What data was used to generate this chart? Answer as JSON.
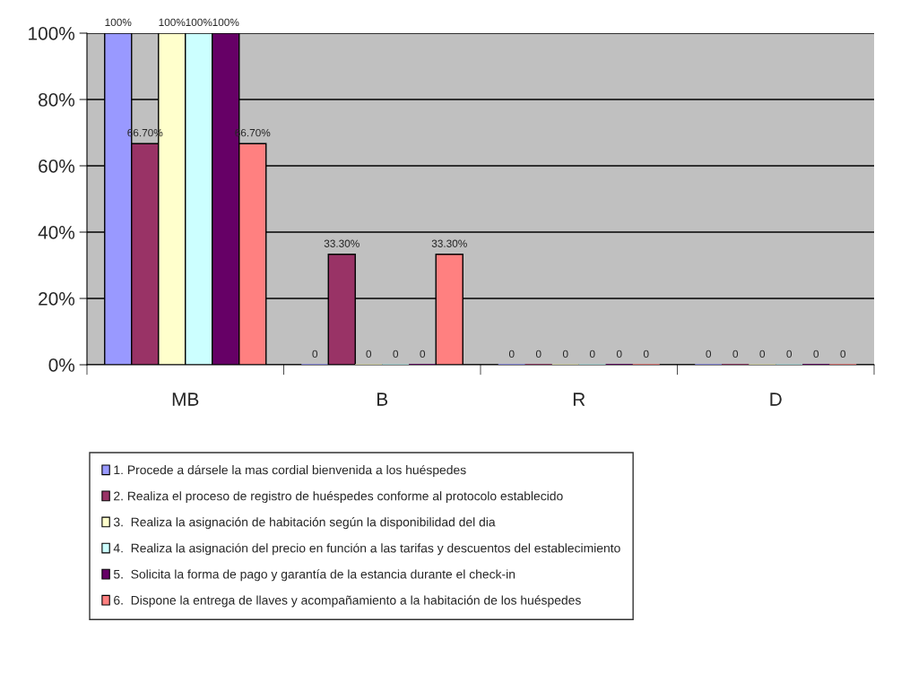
{
  "chart_data": {
    "type": "bar",
    "categories": [
      "MB",
      "B",
      "R",
      "D"
    ],
    "series": [
      {
        "name": "1. Procede a dársele la mas cordial bienvenida a los huéspedes",
        "color": "#9999ff",
        "values": [
          100,
          0,
          0,
          0
        ],
        "value_labels": [
          "100%",
          "0",
          "0",
          "0"
        ]
      },
      {
        "name": "2. Realiza el proceso de registro de huéspedes conforme al protocolo establecido",
        "color": "#993366",
        "values": [
          66.7,
          33.3,
          0,
          0
        ],
        "value_labels": [
          "66.70%",
          "33.30%",
          "0",
          "0"
        ]
      },
      {
        "name": "3.  Realiza la asignación de habitación según la disponibilidad del dia",
        "color": "#ffffcc",
        "values": [
          100,
          0,
          0,
          0
        ],
        "value_labels": [
          "100%",
          "0",
          "0",
          "0"
        ]
      },
      {
        "name": "4.  Realiza la asignación del precio en función a las tarifas y descuentos del establecimiento",
        "color": "#ccffff",
        "values": [
          100,
          0,
          0,
          0
        ],
        "value_labels": [
          "100%",
          "0",
          "0",
          "0"
        ]
      },
      {
        "name": "5.  Solicita la forma de pago y garantía de la estancia durante el check-in",
        "color": "#660066",
        "values": [
          100,
          0,
          0,
          0
        ],
        "value_labels": [
          "100%",
          "0",
          "0",
          "0"
        ]
      },
      {
        "name": "6.  Dispone la entrega de llaves y acompañamiento a la habitación de los huéspedes",
        "color": "#ff8080",
        "values": [
          66.7,
          33.3,
          0,
          0
        ],
        "value_labels": [
          "66.70%",
          "33.30%",
          "0",
          "0"
        ]
      }
    ],
    "ylim": [
      0,
      100
    ],
    "yticks": [
      {
        "value": 0,
        "label": "0%"
      },
      {
        "value": 20,
        "label": "20%"
      },
      {
        "value": 40,
        "label": "40%"
      },
      {
        "value": 60,
        "label": "60%"
      },
      {
        "value": 80,
        "label": "80%"
      },
      {
        "value": 100,
        "label": "100%"
      }
    ],
    "grid": "y",
    "legend": "bottom"
  }
}
